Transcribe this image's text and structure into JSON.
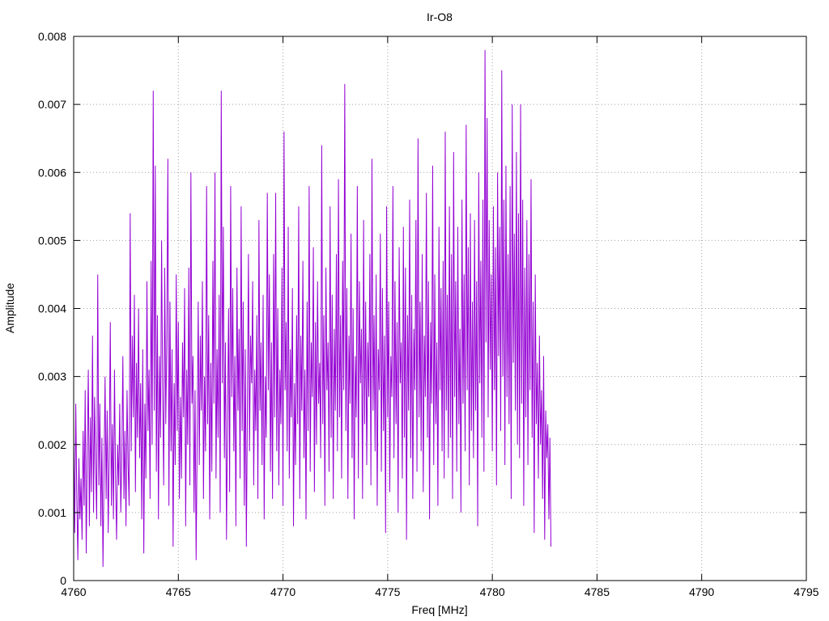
{
  "chart_data": {
    "type": "line",
    "title": "Ir-O8",
    "xlabel": "Freq [MHz]",
    "ylabel": "Amplitude",
    "xlim": [
      4760,
      4795
    ],
    "ylim": [
      0,
      0.008
    ],
    "x_ticks": [
      "4760",
      "4765",
      "4770",
      "4775",
      "4780",
      "4785",
      "4790",
      "4795"
    ],
    "y_ticks": [
      "0",
      "0.001",
      "0.002",
      "0.003",
      "0.004",
      "0.005",
      "0.006",
      "0.007",
      "0.008"
    ],
    "grid": true,
    "legend": "none",
    "line_color": "#9400d3",
    "series": [
      {
        "x_start": 4760.0,
        "x_step": 0.05,
        "values": [
          0.0021,
          0.0007,
          0.0026,
          0.0012,
          0.0003,
          0.0018,
          0.0009,
          0.0015,
          0.0006,
          0.0022,
          0.0011,
          0.0028,
          0.0004,
          0.0019,
          0.0031,
          0.0008,
          0.0024,
          0.0013,
          0.0036,
          0.001,
          0.0027,
          0.0017,
          0.0009,
          0.0045,
          0.0014,
          0.0026,
          0.0008,
          0.0021,
          0.0002,
          0.0016,
          0.003,
          0.0012,
          0.0025,
          0.0007,
          0.0019,
          0.0038,
          0.0011,
          0.0023,
          0.0009,
          0.0031,
          0.0015,
          0.0006,
          0.002,
          0.0014,
          0.0026,
          0.001,
          0.0018,
          0.0033,
          0.0012,
          0.0022,
          0.0008,
          0.0028,
          0.0017,
          0.0011,
          0.0054,
          0.0019,
          0.0036,
          0.0024,
          0.0042,
          0.0013,
          0.0032,
          0.0021,
          0.004,
          0.0018,
          0.0029,
          0.0009,
          0.0034,
          0.0004,
          0.0026,
          0.0015,
          0.0044,
          0.0022,
          0.0031,
          0.0012,
          0.0047,
          0.002,
          0.0072,
          0.0025,
          0.0061,
          0.0016,
          0.0039,
          0.0009,
          0.0033,
          0.0021,
          0.005,
          0.0028,
          0.0014,
          0.0046,
          0.0023,
          0.0036,
          0.0062,
          0.0011,
          0.0041,
          0.0019,
          0.0034,
          0.0005,
          0.0029,
          0.0017,
          0.0045,
          0.0022,
          0.0038,
          0.0012,
          0.0027,
          0.0015,
          0.0035,
          0.0024,
          0.0043,
          0.0008,
          0.0031,
          0.002,
          0.0046,
          0.0014,
          0.006,
          0.0026,
          0.0033,
          0.001,
          0.0028,
          0.0003,
          0.0021,
          0.0041,
          0.0017,
          0.0036,
          0.0025,
          0.0044,
          0.0012,
          0.003,
          0.0019,
          0.0058,
          0.0023,
          0.0039,
          0.0009,
          0.0032,
          0.0016,
          0.0047,
          0.0026,
          0.006,
          0.0015,
          0.0034,
          0.0021,
          0.0042,
          0.001,
          0.0072,
          0.0029,
          0.0052,
          0.0018,
          0.0035,
          0.0006,
          0.0024,
          0.004,
          0.0013,
          0.0058,
          0.0027,
          0.0043,
          0.0019,
          0.0033,
          0.0008,
          0.0046,
          0.0025,
          0.0037,
          0.0015,
          0.0055,
          0.0022,
          0.0041,
          0.0011,
          0.0034,
          0.0005,
          0.0026,
          0.0048,
          0.0019,
          0.0036,
          0.0029,
          0.0044,
          0.0014,
          0.0031,
          0.0022,
          0.0039,
          0.0012,
          0.0053,
          0.0025,
          0.0035,
          0.0017,
          0.0042,
          0.0009,
          0.003,
          0.0021,
          0.0057,
          0.0028,
          0.0045,
          0.0016,
          0.0035,
          0.0012,
          0.0048,
          0.0024,
          0.0057,
          0.0019,
          0.004,
          0.0014,
          0.0031,
          0.0023,
          0.0046,
          0.0011,
          0.0066,
          0.0028,
          0.0038,
          0.0019,
          0.0052,
          0.0015,
          0.0034,
          0.0024,
          0.0043,
          0.0008,
          0.0029,
          0.0017,
          0.0039,
          0.0023,
          0.0055,
          0.0012,
          0.0036,
          0.0025,
          0.0047,
          0.0018,
          0.0031,
          0.0009,
          0.0041,
          0.0022,
          0.0058,
          0.0016,
          0.0035,
          0.0027,
          0.0049,
          0.0013,
          0.0038,
          0.002,
          0.0044,
          0.0026,
          0.0032,
          0.0018,
          0.0064,
          0.0023,
          0.0039,
          0.0011,
          0.0046,
          0.0028,
          0.0035,
          0.0016,
          0.0055,
          0.0021,
          0.0042,
          0.0012,
          0.0037,
          0.0025,
          0.0048,
          0.0019,
          0.0059,
          0.0024,
          0.0039,
          0.0015,
          0.0047,
          0.0028,
          0.0073,
          0.0022,
          0.0043,
          0.0012,
          0.0036,
          0.0026,
          0.0051,
          0.0018,
          0.004,
          0.0009,
          0.0033,
          0.0024,
          0.0058,
          0.0015,
          0.0044,
          0.0029,
          0.0037,
          0.0012,
          0.0053,
          0.0023,
          0.0041,
          0.0017,
          0.0035,
          0.0027,
          0.0048,
          0.0014,
          0.0062,
          0.0025,
          0.0039,
          0.0019,
          0.0045,
          0.0011,
          0.0034,
          0.0028,
          0.0051,
          0.0016,
          0.0043,
          0.0022,
          0.0036,
          0.0007,
          0.0055,
          0.0024,
          0.0041,
          0.0013,
          0.0033,
          0.0027,
          0.0058,
          0.0018,
          0.0044,
          0.0023,
          0.0038,
          0.001,
          0.0049,
          0.0029,
          0.0035,
          0.0015,
          0.0052,
          0.0021,
          0.0046,
          0.0006,
          0.0039,
          0.0025,
          0.0056,
          0.0018,
          0.0042,
          0.0012,
          0.0037,
          0.0028,
          0.0053,
          0.0016,
          0.0065,
          0.0024,
          0.0041,
          0.0019,
          0.0048,
          0.0013,
          0.0036,
          0.0027,
          0.0057,
          0.0021,
          0.0044,
          0.0009,
          0.0038,
          0.0026,
          0.0061,
          0.0017,
          0.0045,
          0.0023,
          0.0035,
          0.0011,
          0.0052,
          0.0028,
          0.0043,
          0.0019,
          0.0047,
          0.0015,
          0.0066,
          0.0025,
          0.0042,
          0.0018,
          0.0055,
          0.0021,
          0.0048,
          0.0012,
          0.0063,
          0.0027,
          0.0044,
          0.0016,
          0.0052,
          0.0023,
          0.0037,
          0.001,
          0.0056,
          0.0026,
          0.0045,
          0.0019,
          0.0067,
          0.0028,
          0.0049,
          0.0014,
          0.0054,
          0.0022,
          0.0041,
          0.0018,
          0.0053,
          0.0025,
          0.0044,
          0.0008,
          0.006,
          0.0029,
          0.0047,
          0.0021,
          0.0056,
          0.0016,
          0.0078,
          0.0035,
          0.0068,
          0.0024,
          0.0053,
          0.0031,
          0.0045,
          0.0019,
          0.0055,
          0.0028,
          0.0049,
          0.0014,
          0.006,
          0.0033,
          0.0052,
          0.0022,
          0.0075,
          0.003,
          0.0056,
          0.0017,
          0.0061,
          0.0027,
          0.0048,
          0.0023,
          0.0058,
          0.0012,
          0.007,
          0.0032,
          0.0051,
          0.0025,
          0.0063,
          0.002,
          0.0054,
          0.0018,
          0.007,
          0.0026,
          0.0056,
          0.0011,
          0.0046,
          0.0024,
          0.0053,
          0.0017,
          0.0048,
          0.0028,
          0.0059,
          0.0021,
          0.0041,
          0.0007,
          0.0045,
          0.0023,
          0.0032,
          0.0015,
          0.0036,
          0.002,
          0.0028,
          0.0012,
          0.0033,
          0.0006,
          0.0025,
          0.0018,
          0.0023,
          0.0009,
          0.0021,
          0.0005
        ]
      }
    ]
  }
}
